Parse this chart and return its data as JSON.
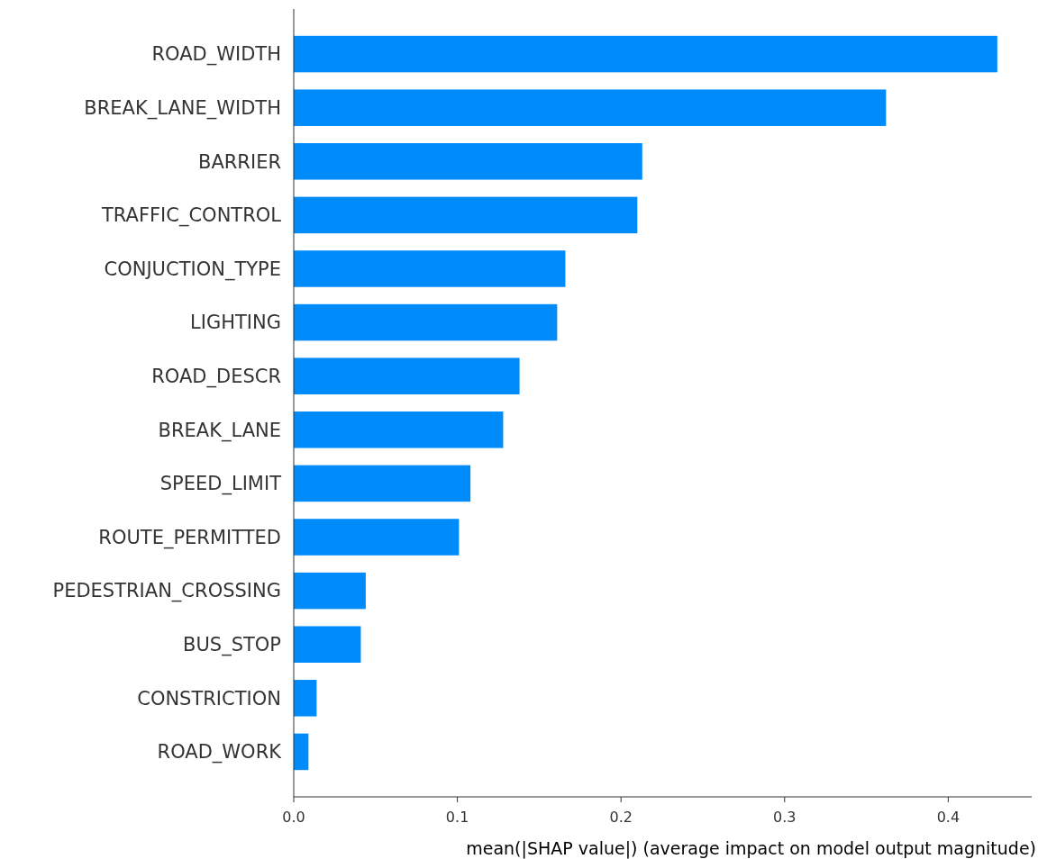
{
  "chart_data": {
    "type": "bar",
    "orientation": "horizontal",
    "xlabel": "mean(|SHAP value|) (average impact on model output magnitude)",
    "categories": [
      "ROAD_WIDTH",
      "BREAK_LANE_WIDTH",
      "BARRIER",
      "TRAFFIC_CONTROL",
      "CONJUCTION_TYPE",
      "LIGHTING",
      "ROAD_DESCR",
      "BREAK_LANE",
      "SPEED_LIMIT",
      "ROUTE_PERMITTED",
      "PEDESTRIAN_CROSSING",
      "BUS_STOP",
      "CONSTRICTION",
      "ROAD_WORK"
    ],
    "values": [
      0.43,
      0.362,
      0.213,
      0.21,
      0.166,
      0.161,
      0.138,
      0.128,
      0.108,
      0.101,
      0.044,
      0.041,
      0.014,
      0.009
    ],
    "color": "#008bfb",
    "xlim": [
      0,
      0.451
    ],
    "xticks": [
      {
        "value": 0,
        "label": "0.0"
      },
      {
        "value": 0.1,
        "label": "0.1"
      },
      {
        "value": 0.2,
        "label": "0.2"
      },
      {
        "value": 0.3,
        "label": "0.3"
      },
      {
        "value": 0.4,
        "label": "0.4"
      }
    ],
    "grid": false
  }
}
